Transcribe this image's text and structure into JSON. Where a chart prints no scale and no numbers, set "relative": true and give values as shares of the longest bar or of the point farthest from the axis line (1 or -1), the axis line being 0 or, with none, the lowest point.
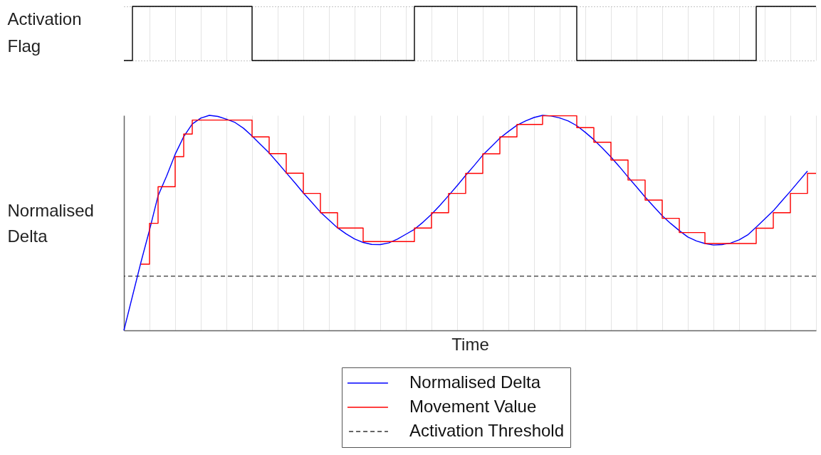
{
  "chart_data": [
    {
      "type": "step",
      "ylabel": "Activation Flag",
      "relative": true,
      "color": "#000000",
      "grid": true,
      "tick_labels": false,
      "categories": [
        null,
        null,
        null,
        null,
        null,
        null,
        null,
        null,
        null,
        null,
        null,
        null,
        null,
        null,
        null,
        null,
        null,
        null,
        null,
        null,
        null,
        null,
        null,
        null,
        null,
        null,
        null,
        null,
        null,
        null,
        null,
        null,
        null,
        null,
        null,
        null,
        null,
        null,
        null,
        null,
        null,
        null,
        null,
        null,
        null,
        null,
        null,
        null,
        null,
        null,
        null,
        null,
        null,
        null,
        null,
        null,
        null,
        null,
        null,
        null,
        null,
        null,
        null,
        null,
        null,
        null,
        null,
        null,
        null,
        null,
        null,
        null,
        null,
        null,
        null,
        null,
        null,
        null,
        null,
        null,
        null,
        null
      ],
      "values": [
        0,
        1,
        1,
        1,
        1,
        1,
        1,
        1,
        1,
        1,
        1,
        1,
        1,
        1,
        1,
        0,
        0,
        0,
        0,
        0,
        0,
        0,
        0,
        0,
        0,
        0,
        0,
        0,
        0,
        0,
        0,
        0,
        0,
        0,
        1,
        1,
        1,
        1,
        1,
        1,
        1,
        1,
        1,
        1,
        1,
        1,
        1,
        1,
        1,
        1,
        1,
        1,
        1,
        0,
        0,
        0,
        0,
        0,
        0,
        0,
        0,
        0,
        0,
        0,
        0,
        0,
        0,
        0,
        0,
        0,
        0,
        0,
        0,
        0,
        1,
        1,
        1,
        1,
        1,
        1,
        1,
        1
      ]
    },
    {
      "type": "line",
      "xlabel": "Time",
      "ylabel": "Normalised Delta",
      "relative": true,
      "grid": "x",
      "tick_labels": false,
      "legend": "bottom",
      "categories": [
        null,
        null,
        null,
        null,
        null,
        null,
        null,
        null,
        null,
        null,
        null,
        null,
        null,
        null,
        null,
        null,
        null,
        null,
        null,
        null,
        null,
        null,
        null,
        null,
        null,
        null,
        null,
        null,
        null,
        null,
        null,
        null,
        null,
        null,
        null,
        null,
        null,
        null,
        null,
        null,
        null,
        null,
        null,
        null,
        null,
        null,
        null,
        null,
        null,
        null,
        null,
        null,
        null,
        null,
        null,
        null,
        null,
        null,
        null,
        null,
        null,
        null,
        null,
        null,
        null,
        null,
        null,
        null,
        null,
        null,
        null,
        null,
        null,
        null,
        null,
        null,
        null,
        null,
        null,
        null,
        null,
        null
      ],
      "series": [
        {
          "name": "Normalised Delta",
          "color": "#0000ff",
          "values": [
            0,
            0.159,
            0.318,
            0.467,
            0.626,
            0.718,
            0.819,
            0.901,
            0.96,
            0.987,
            1.0,
            0.995,
            0.982,
            0.967,
            0.94,
            0.904,
            0.864,
            0.825,
            0.78,
            0.733,
            0.687,
            0.639,
            0.595,
            0.55,
            0.513,
            0.477,
            0.449,
            0.425,
            0.409,
            0.4,
            0.399,
            0.407,
            0.424,
            0.447,
            0.47,
            0.503,
            0.54,
            0.582,
            0.627,
            0.673,
            0.721,
            0.767,
            0.815,
            0.854,
            0.894,
            0.925,
            0.954,
            0.974,
            0.99,
            1.0,
            0.997,
            0.988,
            0.974,
            0.952,
            0.921,
            0.887,
            0.848,
            0.806,
            0.761,
            0.713,
            0.667,
            0.62,
            0.576,
            0.533,
            0.497,
            0.464,
            0.434,
            0.416,
            0.404,
            0.397,
            0.399,
            0.406,
            0.421,
            0.444,
            0.48,
            0.518,
            0.556,
            0.602,
            0.647,
            0.694,
            0.741,
            null
          ]
        },
        {
          "name": "Movement Value",
          "type": "step",
          "color": "#ff0000",
          "values": [
            null,
            null,
            0.308,
            0.498,
            0.668,
            0.668,
            0.808,
            0.913,
            0.978,
            0.978,
            0.978,
            0.978,
            0.978,
            0.978,
            0.978,
            0.9,
            0.9,
            0.822,
            0.822,
            0.731,
            0.731,
            0.637,
            0.637,
            0.547,
            0.547,
            0.476,
            0.476,
            0.476,
            0.413,
            0.413,
            0.413,
            0.413,
            0.413,
            0.413,
            0.476,
            0.476,
            0.547,
            0.547,
            0.637,
            0.637,
            0.73,
            0.73,
            0.821,
            0.821,
            0.9,
            0.9,
            0.958,
            0.958,
            0.958,
            0.998,
            0.998,
            0.998,
            0.998,
            0.943,
            0.943,
            0.875,
            0.875,
            0.792,
            0.792,
            0.699,
            0.699,
            0.606,
            0.606,
            0.521,
            0.521,
            0.455,
            0.455,
            0.455,
            0.404,
            0.404,
            0.404,
            0.404,
            0.404,
            0.404,
            0.475,
            0.475,
            0.547,
            0.547,
            0.637,
            0.637,
            0.73,
            0.73
          ]
        }
      ],
      "ref_lines": [
        {
          "axis": "y",
          "value": 0.252,
          "label": "Activation Threshold",
          "color": "#333333",
          "line_style": "dashed"
        }
      ]
    }
  ]
}
